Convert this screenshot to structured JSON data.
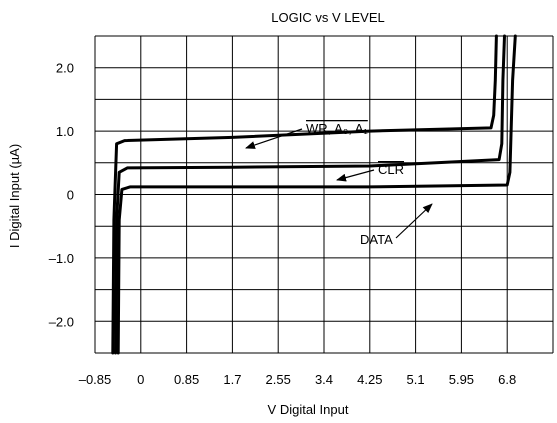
{
  "chart_data": {
    "type": "line",
    "title": "LOGIC vs V LEVEL",
    "xlabel": "V Digital Input",
    "ylabel": "I Digital Input (µA)",
    "x_ticks": [
      "–0.85",
      "0",
      "0.85",
      "1.7",
      "2.55",
      "3.4",
      "4.25",
      "5.1",
      "5.95",
      "6.8"
    ],
    "y_ticks": [
      "2.0",
      "1.0",
      "0",
      "–1.0",
      "–2.0"
    ],
    "xlim": [
      -0.85,
      7.65
    ],
    "ylim": [
      -2.5,
      2.5
    ],
    "grid": true,
    "series": [
      {
        "name": "WR, A0, A1",
        "points": [
          [
            -0.52,
            -2.5
          ],
          [
            -0.5,
            -0.4
          ],
          [
            -0.45,
            0.8
          ],
          [
            -0.3,
            0.85
          ],
          [
            1.7,
            0.9
          ],
          [
            4.25,
            1.0
          ],
          [
            6.5,
            1.05
          ],
          [
            6.55,
            1.25
          ],
          [
            6.58,
            1.8
          ],
          [
            6.6,
            2.5
          ]
        ]
      },
      {
        "name": "CLR",
        "points": [
          [
            -0.47,
            -2.5
          ],
          [
            -0.45,
            -0.4
          ],
          [
            -0.4,
            0.35
          ],
          [
            -0.25,
            0.42
          ],
          [
            1.7,
            0.43
          ],
          [
            4.25,
            0.45
          ],
          [
            6.65,
            0.55
          ],
          [
            6.7,
            0.8
          ],
          [
            6.72,
            1.8
          ],
          [
            6.75,
            2.5
          ]
        ]
      },
      {
        "name": "DATA",
        "points": [
          [
            -0.42,
            -2.5
          ],
          [
            -0.4,
            -0.4
          ],
          [
            -0.35,
            0.08
          ],
          [
            -0.2,
            0.12
          ],
          [
            1.7,
            0.12
          ],
          [
            4.25,
            0.12
          ],
          [
            6.8,
            0.15
          ],
          [
            6.85,
            0.35
          ],
          [
            6.9,
            1.8
          ],
          [
            6.95,
            2.5
          ]
        ]
      }
    ],
    "annotations": [
      {
        "label": "WR, A₀, A₁",
        "overlined": true
      },
      {
        "label": "CLR",
        "overlined": true
      },
      {
        "label": "DATA",
        "overlined": false
      }
    ]
  }
}
